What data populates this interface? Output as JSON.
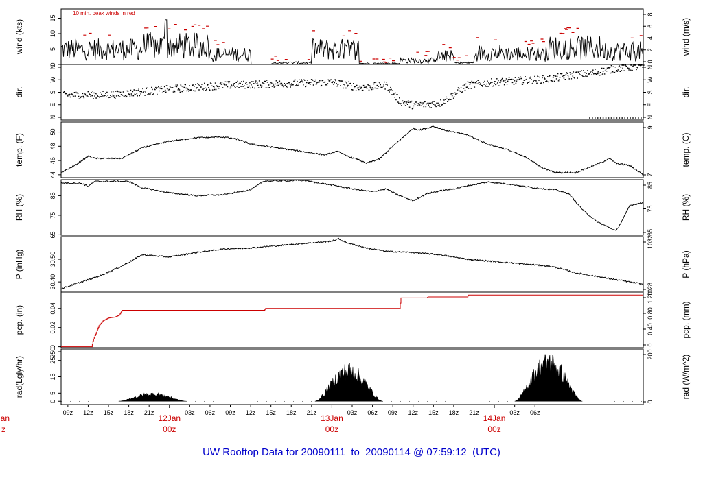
{
  "title": "UW Rooftop Data for 20090111  to  20090114 @ 07:59:12  (UTC)",
  "colors": {
    "title": "#0000cc",
    "day_label": "#cc0000",
    "peak": "#cc0000",
    "precip": "#cc0000",
    "line": "#000000"
  },
  "chart_data": [
    {
      "type": "line",
      "name": "wind",
      "ylabel": "wind (kts)",
      "ylabel_right": "wind (m/s)",
      "ylim": [
        0,
        18
      ],
      "yticks": [
        0,
        5,
        10,
        15
      ],
      "yticks_right": [
        0,
        2,
        4,
        6,
        8
      ],
      "annotation": "10 min. peak winds in red",
      "series": [
        {
          "name": "wind",
          "segments": [
            [
              0,
              12,
              4.5
            ],
            [
              12,
              22,
              5.5
            ],
            [
              22,
              28,
              3
            ],
            [
              28,
              31,
              0
            ],
            [
              31,
              37,
              0.5
            ],
            [
              37,
              44,
              4.5
            ],
            [
              44,
              50,
              0.3
            ],
            [
              50,
              55,
              1.2
            ],
            [
              55,
              58,
              2.5
            ],
            [
              58,
              61,
              0.5
            ],
            [
              61,
              66,
              3.5
            ],
            [
              66,
              72,
              3.2
            ],
            [
              72,
              80,
              5.0
            ],
            [
              80,
              86,
              4.0
            ]
          ]
        },
        {
          "name": "10 min. peak",
          "color": "red"
        }
      ]
    },
    {
      "type": "scatter",
      "name": "dir",
      "ylabel": "dir.",
      "ylabel_right": "dir.",
      "ylim": [
        0,
        360
      ],
      "yticks": [
        "N",
        "E",
        "S",
        "W",
        "N"
      ],
      "yticks_right": [
        "N",
        "E",
        "S",
        "W",
        "N"
      ],
      "series": [
        {
          "name": "direction",
          "knots": [
            [
              0,
              160
            ],
            [
              8,
              165
            ],
            [
              16,
              200
            ],
            [
              24,
              225
            ],
            [
              32,
              235
            ],
            [
              40,
              245
            ],
            [
              44,
              210
            ],
            [
              48,
              225
            ],
            [
              50,
              120
            ],
            [
              52,
              95
            ],
            [
              56,
              110
            ],
            [
              60,
              225
            ],
            [
              64,
              245
            ],
            [
              72,
              265
            ],
            [
              76,
              295
            ],
            [
              78,
              300
            ],
            [
              82,
              335
            ],
            [
              86,
              350
            ]
          ]
        }
      ]
    },
    {
      "type": "line",
      "name": "temp",
      "ylabel": "temp. (F)",
      "ylabel_right": "temp. (C)",
      "ylim": [
        43.6,
        51.4
      ],
      "yticks": [
        44,
        46,
        48,
        50
      ],
      "yticks_right": [
        7,
        9
      ],
      "series": [
        {
          "name": "temperature",
          "knots": [
            [
              0,
              44.3
            ],
            [
              2,
              45.3
            ],
            [
              4,
              46.6
            ],
            [
              5,
              46.3
            ],
            [
              9,
              46.3
            ],
            [
              12,
              47.8
            ],
            [
              16,
              48.7
            ],
            [
              20,
              49.2
            ],
            [
              24,
              49.3
            ],
            [
              26,
              49.0
            ],
            [
              28,
              48.3
            ],
            [
              31,
              47.9
            ],
            [
              34,
              47.5
            ],
            [
              36,
              47.2
            ],
            [
              39,
              46.8
            ],
            [
              41,
              47.3
            ],
            [
              42,
              46.7
            ],
            [
              44,
              46.1
            ],
            [
              45,
              45.6
            ],
            [
              47,
              46.2
            ],
            [
              49,
              48.0
            ],
            [
              52,
              50.5
            ],
            [
              53,
              50.3
            ],
            [
              55,
              50.8
            ],
            [
              57,
              50.2
            ],
            [
              60,
              49.6
            ],
            [
              63,
              48.3
            ],
            [
              66,
              47.5
            ],
            [
              69,
              46.3
            ],
            [
              71,
              45.0
            ],
            [
              73,
              44.3
            ],
            [
              76,
              44.3
            ],
            [
              80,
              45.8
            ],
            [
              81,
              46.3
            ],
            [
              82,
              45.6
            ],
            [
              84,
              45.3
            ],
            [
              86,
              44.0
            ]
          ]
        }
      ]
    },
    {
      "type": "line",
      "name": "rh",
      "ylabel": "RH (%)",
      "ylabel_right": "RH (%)",
      "ylim": [
        64.8,
        93.2
      ],
      "yticks": [
        65,
        75,
        85
      ],
      "yticks_right": [
        65,
        75,
        85
      ],
      "series": [
        {
          "name": "RH",
          "knots": [
            [
              0,
              91.5
            ],
            [
              3,
              91.3
            ],
            [
              4,
              89.8
            ],
            [
              5,
              92.3
            ],
            [
              10,
              92.3
            ],
            [
              12,
              89.0
            ],
            [
              16,
              86.5
            ],
            [
              20,
              85.0
            ],
            [
              24,
              85.5
            ],
            [
              28,
              88.0
            ],
            [
              30,
              92.5
            ],
            [
              36,
              92.8
            ],
            [
              38,
              91.5
            ],
            [
              40,
              90.5
            ],
            [
              43,
              88.5
            ],
            [
              46,
              87.0
            ],
            [
              48,
              88.5
            ],
            [
              50,
              85.0
            ],
            [
              52,
              82.5
            ],
            [
              54,
              86.0
            ],
            [
              56,
              87.5
            ],
            [
              58,
              88.5
            ],
            [
              60,
              90.0
            ],
            [
              63,
              92.0
            ],
            [
              66,
              91.0
            ],
            [
              70,
              89.0
            ],
            [
              73,
              88.0
            ],
            [
              75,
              86.0
            ],
            [
              77,
              78.0
            ],
            [
              79,
              72.0
            ],
            [
              82,
              67.0
            ],
            [
              83,
              73.0
            ],
            [
              84,
              80.0
            ],
            [
              86,
              81.5
            ]
          ]
        }
      ]
    },
    {
      "type": "line",
      "name": "pressure",
      "ylabel": "P (inHg)",
      "ylabel_right": "P (hPa)",
      "ylim": [
        30.355,
        30.6
      ],
      "yticks": [
        30.4,
        30.5
      ],
      "yticks_right": [
        1028,
        1032
      ],
      "series": [
        {
          "name": "pressure",
          "knots": [
            [
              0,
              30.37
            ],
            [
              3,
              30.4
            ],
            [
              6,
              30.43
            ],
            [
              9,
              30.47
            ],
            [
              12,
              30.52
            ],
            [
              16,
              30.51
            ],
            [
              20,
              30.53
            ],
            [
              24,
              30.545
            ],
            [
              28,
              30.55
            ],
            [
              32,
              30.56
            ],
            [
              36,
              30.57
            ],
            [
              40,
              30.58
            ],
            [
              41,
              30.59
            ],
            [
              42,
              30.575
            ],
            [
              45,
              30.55
            ],
            [
              48,
              30.535
            ],
            [
              52,
              30.53
            ],
            [
              56,
              30.52
            ],
            [
              60,
              30.5
            ],
            [
              64,
              30.49
            ],
            [
              68,
              30.48
            ],
            [
              72,
              30.47
            ],
            [
              73,
              30.465
            ],
            [
              76,
              30.44
            ],
            [
              80,
              30.42
            ],
            [
              84,
              30.4
            ],
            [
              86,
              30.39
            ]
          ]
        }
      ]
    },
    {
      "type": "line",
      "name": "precip",
      "ylabel": "pcp. (in)",
      "ylabel_right": "pcp. (mm)",
      "ylim": [
        -0.001,
        0.057
      ],
      "yticks": [
        0.0,
        0.02,
        0.04
      ],
      "yticks_right": [
        0,
        0.4,
        0.8,
        1.2
      ],
      "series": [
        {
          "name": "precipitation",
          "knots": [
            [
              0,
              0
            ],
            [
              4.5,
              0
            ],
            [
              4.8,
              0.008
            ],
            [
              5.2,
              0.015
            ],
            [
              5.6,
              0.022
            ],
            [
              6.2,
              0.027
            ],
            [
              7,
              0.03
            ],
            [
              8,
              0.031
            ],
            [
              8.6,
              0.033
            ],
            [
              9,
              0.038
            ],
            [
              30,
              0.038
            ],
            [
              30.2,
              0.04
            ],
            [
              50,
              0.04
            ],
            [
              50.2,
              0.051
            ],
            [
              54,
              0.051
            ],
            [
              54.2,
              0.052
            ],
            [
              60,
              0.052
            ],
            [
              60.2,
              0.054
            ],
            [
              86,
              0.054
            ]
          ]
        }
      ]
    },
    {
      "type": "area",
      "name": "radiation",
      "ylabel": "rad(Lgly/hr)",
      "ylabel_right": "rad (W/m^2)",
      "ylim": [
        -2,
        32
      ],
      "yticks": [
        0,
        5,
        15,
        25,
        "250."
      ],
      "yticks_right": [
        0,
        200
      ],
      "series": [
        {
          "name": "radiation",
          "days": [
            {
              "start": 8.5,
              "end": 18.5,
              "peak": 5.2
            },
            {
              "start": 37.5,
              "end": 47.5,
              "peak": 22
            },
            {
              "start": 67,
              "end": 77,
              "peak": 28
            }
          ]
        }
      ]
    }
  ],
  "x_axis": {
    "hour_ticks": [
      {
        "x": 1,
        "label": "09z"
      },
      {
        "x": 4,
        "label": "12z"
      },
      {
        "x": 7,
        "label": "15z"
      },
      {
        "x": 10,
        "label": "18z"
      },
      {
        "x": 13,
        "label": "21z"
      },
      {
        "x": 19,
        "label": "03z"
      },
      {
        "x": 22,
        "label": "06z"
      },
      {
        "x": 25,
        "label": "09z"
      },
      {
        "x": 28,
        "label": "12z"
      },
      {
        "x": 31,
        "label": "15z"
      },
      {
        "x": 34,
        "label": "18z"
      },
      {
        "x": 37,
        "label": "21z"
      },
      {
        "x": 43,
        "label": "03z"
      },
      {
        "x": 46,
        "label": "06z"
      },
      {
        "x": 49,
        "label": "09z"
      },
      {
        "x": 52,
        "label": "12z"
      },
      {
        "x": 55,
        "label": "15z"
      },
      {
        "x": 58,
        "label": "18z"
      },
      {
        "x": 61,
        "label": "21z"
      },
      {
        "x": 67,
        "label": "03z"
      },
      {
        "x": 70,
        "label": "06z"
      }
    ],
    "day_ticks": [
      {
        "x": 16,
        "date": "12Jan",
        "hour": "00z"
      },
      {
        "x": 40,
        "date": "13Jan",
        "hour": "00z"
      },
      {
        "x": 64,
        "date": "14Jan",
        "hour": "00z"
      }
    ],
    "left_cut_label": {
      "date": "Jan",
      "hour": "z"
    }
  }
}
